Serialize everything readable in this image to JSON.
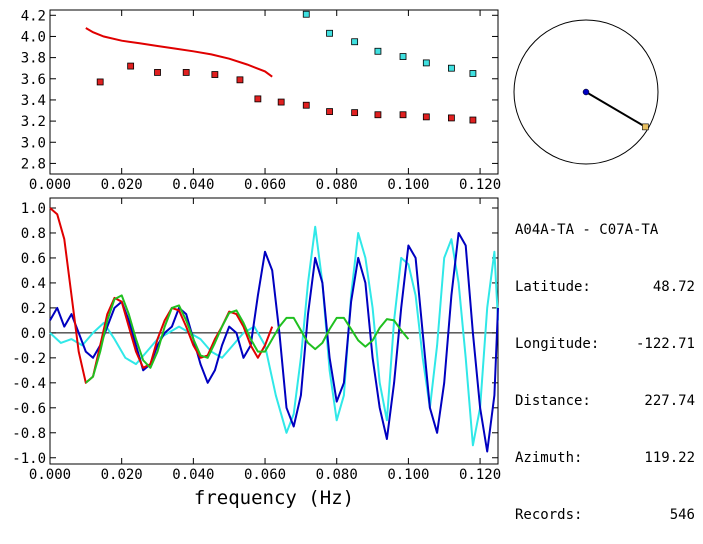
{
  "station": {
    "pair": "A04A-TA - C07A-TA",
    "rows": [
      {
        "label": "Latitude:",
        "value": "48.72"
      },
      {
        "label": "Longitude:",
        "value": "-122.71"
      },
      {
        "label": "Distance:",
        "value": "227.74"
      },
      {
        "label": "Azimuth:",
        "value": "119.22"
      },
      {
        "label": "Records:",
        "value": "546"
      }
    ]
  },
  "colors": {
    "red": "#e00000",
    "blue": "#0000c0",
    "cyan": "#30e8e8",
    "green": "#20c020",
    "marker_red": "#e02020",
    "marker_cyan": "#40e0e0",
    "endpoint": "#e8c060"
  },
  "chart_data": [
    {
      "type": "scatter",
      "title": "",
      "xlabel": "",
      "ylabel": "",
      "xlim": [
        0.0,
        0.125
      ],
      "ylim": [
        2.7,
        4.25
      ],
      "grid": false,
      "x_ticks": [
        "0.000",
        "0.020",
        "0.040",
        "0.060",
        "0.080",
        "0.100",
        "0.120"
      ],
      "y_ticks": [
        "2.8",
        "3.0",
        "3.2",
        "3.4",
        "3.6",
        "3.8",
        "4.0",
        "4.2"
      ],
      "series": [
        {
          "kind": "line",
          "color": "#e00000",
          "x": [
            0.01,
            0.012,
            0.015,
            0.02,
            0.025,
            0.03,
            0.035,
            0.04,
            0.045,
            0.05,
            0.055,
            0.06,
            0.062
          ],
          "y": [
            4.08,
            4.04,
            4.0,
            3.96,
            3.935,
            3.91,
            3.885,
            3.86,
            3.83,
            3.79,
            3.735,
            3.67,
            3.62
          ]
        },
        {
          "kind": "markers",
          "color": "#e02020",
          "x": [
            0.014,
            0.0225,
            0.03,
            0.038,
            0.046,
            0.053,
            0.058,
            0.0645,
            0.0715,
            0.078,
            0.085,
            0.0915,
            0.0985,
            0.105,
            0.112,
            0.118
          ],
          "y": [
            3.57,
            3.72,
            3.66,
            3.66,
            3.64,
            3.59,
            3.41,
            3.38,
            3.35,
            3.29,
            3.28,
            3.26,
            3.26,
            3.24,
            3.23,
            3.21
          ]
        },
        {
          "kind": "markers",
          "color": "#40e0e0",
          "x": [
            0.0715,
            0.078,
            0.085,
            0.0915,
            0.0985,
            0.105,
            0.112,
            0.118
          ],
          "y": [
            4.21,
            4.03,
            3.95,
            3.86,
            3.81,
            3.75,
            3.7,
            3.65
          ]
        }
      ]
    },
    {
      "type": "line",
      "title": "",
      "xlabel": "frequency (Hz)",
      "ylabel": "",
      "xlim": [
        0.0,
        0.125
      ],
      "ylim": [
        -1.05,
        1.08
      ],
      "grid": false,
      "x_ticks": [
        "0.000",
        "0.020",
        "0.040",
        "0.060",
        "0.080",
        "0.100",
        "0.120"
      ],
      "y_ticks": [
        "1.0",
        "0.8",
        "0.6",
        "0.4",
        "0.2",
        "0.0",
        "-0.2",
        "-0.4",
        "-0.6",
        "-0.8",
        "-1.0"
      ],
      "series": [
        {
          "color": "#30e8e8",
          "x": [
            0.0,
            0.003,
            0.006,
            0.009,
            0.012,
            0.015,
            0.018,
            0.021,
            0.024,
            0.027,
            0.03,
            0.033,
            0.036,
            0.039,
            0.042,
            0.045,
            0.048,
            0.051,
            0.054,
            0.057,
            0.06,
            0.063,
            0.066,
            0.068,
            0.07,
            0.072,
            0.074,
            0.076,
            0.078,
            0.08,
            0.082,
            0.084,
            0.086,
            0.088,
            0.09,
            0.092,
            0.094,
            0.096,
            0.098,
            0.1,
            0.102,
            0.104,
            0.106,
            0.108,
            0.11,
            0.112,
            0.114,
            0.116,
            0.118,
            0.12,
            0.122,
            0.124,
            0.125
          ],
          "y": [
            0.0,
            -0.08,
            -0.05,
            -0.1,
            0.0,
            0.08,
            -0.05,
            -0.2,
            -0.25,
            -0.15,
            -0.05,
            0.0,
            0.05,
            0.0,
            -0.05,
            -0.15,
            -0.2,
            -0.1,
            0.0,
            0.05,
            -0.1,
            -0.5,
            -0.8,
            -0.65,
            -0.2,
            0.4,
            0.85,
            0.4,
            -0.3,
            -0.7,
            -0.5,
            0.3,
            0.8,
            0.6,
            0.2,
            -0.4,
            -0.7,
            0.1,
            0.6,
            0.55,
            0.3,
            -0.2,
            -0.6,
            -0.1,
            0.6,
            0.75,
            0.4,
            -0.2,
            -0.9,
            -0.6,
            0.2,
            0.65,
            0.1
          ]
        },
        {
          "color": "#0000c0",
          "x": [
            0.0,
            0.002,
            0.004,
            0.006,
            0.008,
            0.01,
            0.012,
            0.014,
            0.016,
            0.018,
            0.02,
            0.022,
            0.024,
            0.026,
            0.028,
            0.03,
            0.032,
            0.034,
            0.036,
            0.038,
            0.04,
            0.042,
            0.044,
            0.046,
            0.048,
            0.05,
            0.052,
            0.054,
            0.056,
            0.058,
            0.06,
            0.062,
            0.064,
            0.066,
            0.068,
            0.07,
            0.072,
            0.074,
            0.076,
            0.078,
            0.08,
            0.082,
            0.084,
            0.086,
            0.088,
            0.09,
            0.092,
            0.094,
            0.096,
            0.098,
            0.1,
            0.102,
            0.104,
            0.106,
            0.108,
            0.11,
            0.112,
            0.114,
            0.116,
            0.118,
            0.12,
            0.122,
            0.124,
            0.125
          ],
          "y": [
            0.1,
            0.2,
            0.05,
            0.15,
            0.0,
            -0.15,
            -0.2,
            -0.1,
            0.05,
            0.2,
            0.25,
            0.1,
            -0.1,
            -0.3,
            -0.25,
            -0.1,
            0.0,
            0.05,
            0.2,
            0.15,
            -0.05,
            -0.25,
            -0.4,
            -0.3,
            -0.1,
            0.05,
            0.0,
            -0.2,
            -0.1,
            0.3,
            0.65,
            0.5,
            0.0,
            -0.6,
            -0.75,
            -0.5,
            0.15,
            0.6,
            0.4,
            -0.2,
            -0.55,
            -0.4,
            0.25,
            0.6,
            0.4,
            -0.2,
            -0.6,
            -0.85,
            -0.4,
            0.2,
            0.7,
            0.6,
            0.0,
            -0.6,
            -0.8,
            -0.4,
            0.3,
            0.8,
            0.7,
            0.0,
            -0.6,
            -0.95,
            -0.5,
            0.2
          ]
        },
        {
          "color": "#e00000",
          "x": [
            0.0,
            0.002,
            0.004,
            0.006,
            0.008,
            0.01,
            0.012,
            0.014,
            0.016,
            0.018,
            0.02,
            0.022,
            0.024,
            0.026,
            0.028,
            0.03,
            0.032,
            0.034,
            0.036,
            0.038,
            0.04,
            0.042,
            0.044,
            0.046,
            0.048,
            0.05,
            0.052,
            0.054,
            0.056,
            0.058,
            0.06,
            0.062
          ],
          "y": [
            1.0,
            0.95,
            0.75,
            0.3,
            -0.15,
            -0.4,
            -0.35,
            -0.1,
            0.15,
            0.28,
            0.25,
            0.05,
            -0.15,
            -0.28,
            -0.25,
            -0.05,
            0.1,
            0.2,
            0.18,
            0.05,
            -0.1,
            -0.2,
            -0.18,
            -0.05,
            0.05,
            0.17,
            0.15,
            0.05,
            -0.1,
            -0.2,
            -0.1,
            0.05
          ]
        },
        {
          "color": "#20c020",
          "x": [
            0.01,
            0.012,
            0.014,
            0.016,
            0.018,
            0.02,
            0.022,
            0.024,
            0.026,
            0.028,
            0.03,
            0.032,
            0.034,
            0.036,
            0.038,
            0.04,
            0.042,
            0.044,
            0.046,
            0.048,
            0.05,
            0.052,
            0.054,
            0.056,
            0.058,
            0.06,
            0.062,
            0.064,
            0.066,
            0.068,
            0.07,
            0.072,
            0.074,
            0.076,
            0.078,
            0.08,
            0.082,
            0.084,
            0.086,
            0.088,
            0.09,
            0.092,
            0.094,
            0.096,
            0.098,
            0.1
          ],
          "y": [
            -0.4,
            -0.35,
            -0.15,
            0.1,
            0.27,
            0.3,
            0.15,
            -0.05,
            -0.22,
            -0.28,
            -0.15,
            0.05,
            0.2,
            0.22,
            0.1,
            -0.05,
            -0.18,
            -0.2,
            -0.08,
            0.05,
            0.16,
            0.18,
            0.08,
            -0.05,
            -0.15,
            -0.15,
            -0.05,
            0.05,
            0.12,
            0.12,
            0.02,
            -0.08,
            -0.13,
            -0.08,
            0.03,
            0.12,
            0.12,
            0.03,
            -0.06,
            -0.11,
            -0.06,
            0.04,
            0.11,
            0.1,
            0.02,
            -0.05
          ]
        }
      ]
    },
    {
      "type": "polar",
      "title": "",
      "azimuth_deg": 119.22,
      "ray_fraction": 0.85,
      "circle_color": "#000000",
      "ray_color": "#000000",
      "center_color": "#0000c0",
      "end_color": "#e8c060"
    }
  ]
}
